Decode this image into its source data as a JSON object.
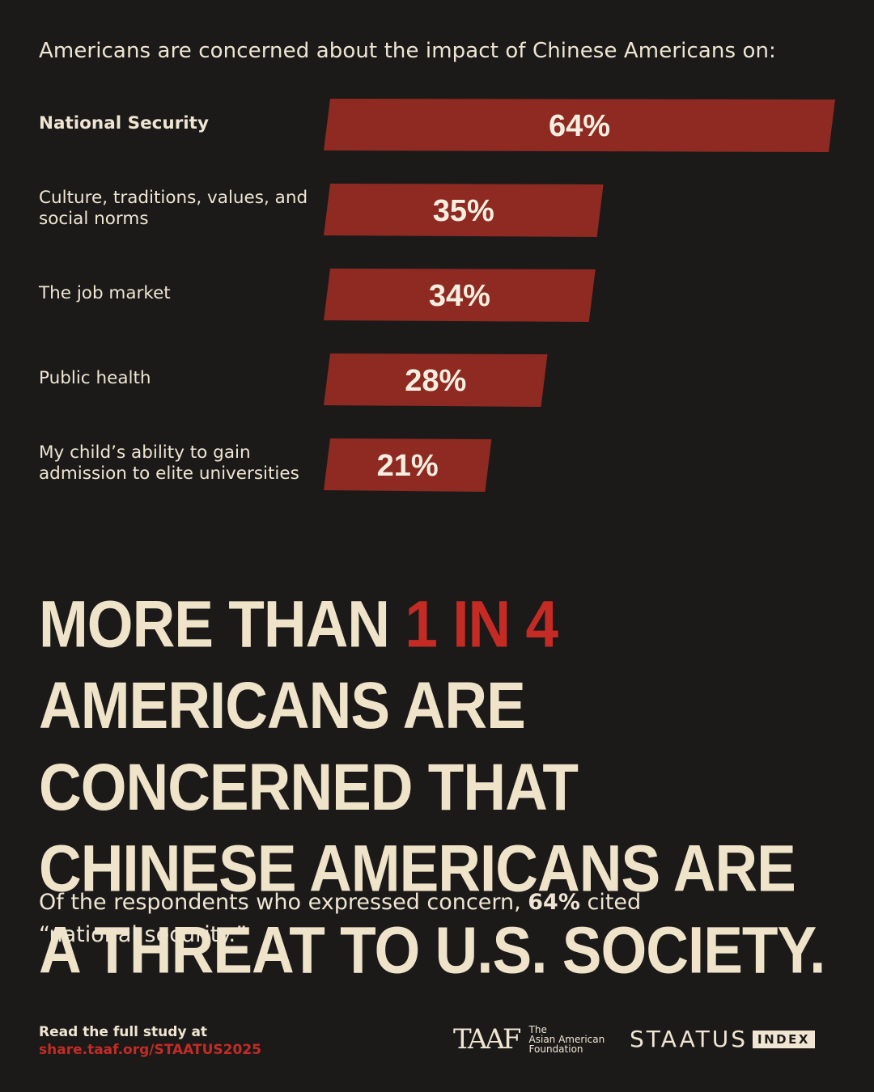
{
  "subtitle": "Americans are concerned about the impact of Chinese Americans on:",
  "colors": {
    "bar": "#8e2a22",
    "accent": "#c42b24",
    "text": "#efe5d2",
    "background": "#1b1a19"
  },
  "chart_data": {
    "type": "bar",
    "orientation": "horizontal",
    "categories": [
      "National Security",
      "Culture, traditions, values, and social norms",
      "The job market",
      "Public health",
      "My child’s ability to gain admission to elite universities"
    ],
    "values": [
      64,
      35,
      34,
      28,
      21
    ],
    "value_labels": [
      "64%",
      "35%",
      "34%",
      "28%",
      "21%"
    ],
    "unit": "%"
  },
  "headline": {
    "part1": "MORE THAN ",
    "highlight": "1 IN 4",
    "part2": " AMERICANS ARE CONCERNED THAT CHINESE AMERICANS ARE A THREAT TO U.S. SOCIETY."
  },
  "note": {
    "before": "Of the respondents who expressed concern, ",
    "bold": "64%",
    "after": " cited “national security.”"
  },
  "footer": {
    "cta": "Read the full study at",
    "link": "share.taaf.org/STAATUS2025"
  },
  "logos": {
    "taaf_mark": "TAAF",
    "taaf_line1": "The",
    "taaf_line2": "Asian American",
    "taaf_line3": "Foundation",
    "staatus_word": "STAATUS",
    "staatus_badge": "INDEX"
  }
}
